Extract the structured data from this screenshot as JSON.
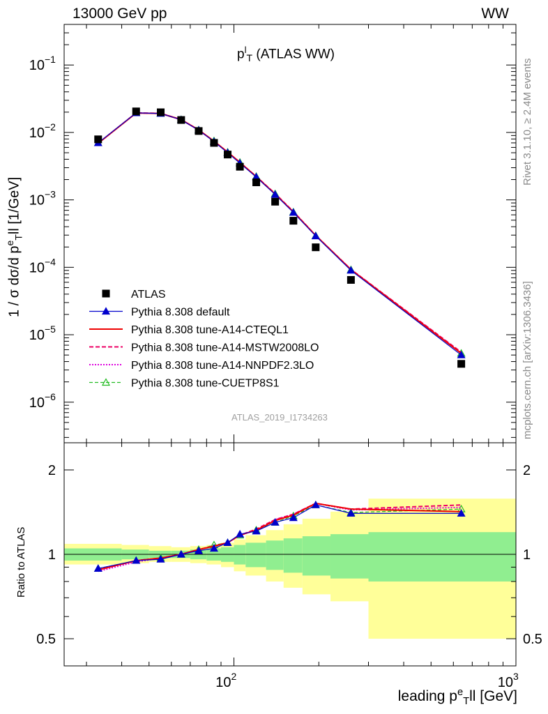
{
  "header": {
    "left": "13000 GeV pp",
    "right": "WW"
  },
  "side": {
    "rivet": "Rivet 3.1.10, ≥ 2.4M events",
    "mcplots": "mcplots.cern.ch [arXiv:1306.3436]"
  },
  "analysis_id": "ATLAS_2019_I1734263",
  "inset_title": {
    "main": "p",
    "sup": "l",
    "sub": "T",
    "rest": " (ATLAS WW)"
  },
  "ylabel_main": {
    "a": "1 / σ  dσ/d p",
    "sup": "e",
    "sub": "T",
    "b": "ll [1/GeV]"
  },
  "ylabel_ratio": "Ratio to ATLAS",
  "xlabel": {
    "a": "leading p",
    "sup": "e",
    "sub": "T",
    "b": "ll [GeV]"
  },
  "colors": {
    "data": "#000000",
    "default": "#0000cc",
    "cteql1": "#ee0000",
    "mstw": "#ee0066",
    "nnpdf": "#dd00dd",
    "cuetp8s1": "#22bb22",
    "band_inner": "#90ee90",
    "band_outer": "#ffff99"
  },
  "chart_data": [
    {
      "type": "scatter",
      "panel": "main",
      "x_scale": "log",
      "y_scale": "log",
      "xlim": [
        25,
        1000
      ],
      "ylim": [
        2.5e-07,
        0.4
      ],
      "y_ticks": [
        {
          "value": 1e-06,
          "label": "10",
          "exp": "−6"
        },
        {
          "value": 1e-05,
          "label": "10",
          "exp": "−5"
        },
        {
          "value": 0.0001,
          "label": "10",
          "exp": "−4"
        },
        {
          "value": 0.001,
          "label": "10",
          "exp": "−3"
        },
        {
          "value": 0.01,
          "label": "10",
          "exp": "−2"
        },
        {
          "value": 0.1,
          "label": "10",
          "exp": "−1"
        }
      ],
      "x": [
        33,
        45,
        55,
        65,
        75,
        85,
        95,
        105,
        120,
        140,
        162.5,
        195,
        260,
        640
      ],
      "legend_position": "bottom-left",
      "series": [
        {
          "name": "ATLAS",
          "key": "data",
          "values": [
            0.0079,
            0.0205,
            0.0199,
            0.0153,
            0.0105,
            0.007,
            0.0047,
            0.0031,
            0.00182,
            0.00094,
            0.00049,
            0.000198,
            6.5e-05,
            3.7e-06
          ]
        },
        {
          "name": "Pythia 8.308 default",
          "key": "default",
          "values": [
            0.007,
            0.0195,
            0.0191,
            0.0154,
            0.0108,
            0.0073,
            0.005,
            0.0035,
            0.00218,
            0.0012,
            0.00065,
            0.000291,
            9e-05,
            5e-06
          ]
        },
        {
          "name": "Pythia 8.308 tune-A14-CTEQL1",
          "key": "cteql1",
          "values": [
            0.0069,
            0.0194,
            0.0191,
            0.0155,
            0.0109,
            0.0074,
            0.0051,
            0.0036,
            0.0022,
            0.00122,
            0.00066,
            0.000296,
            9.2e-05,
            5.3e-06
          ]
        },
        {
          "name": "Pythia 8.308 tune-A14-MSTW2008LO",
          "key": "mstw",
          "values": [
            0.0069,
            0.0195,
            0.0192,
            0.0155,
            0.0109,
            0.0074,
            0.0051,
            0.0036,
            0.00222,
            0.00124,
            0.00067,
            0.000297,
            9.3e-05,
            5.5e-06
          ]
        },
        {
          "name": "Pythia 8.308 tune-A14-NNPDF2.3LO",
          "key": "nnpdf",
          "values": [
            0.0069,
            0.0194,
            0.0191,
            0.0155,
            0.0108,
            0.0074,
            0.0051,
            0.0036,
            0.00221,
            0.00123,
            0.00067,
            0.000296,
            9.3e-05,
            5.4e-06
          ]
        },
        {
          "name": "Pythia 8.308 tune-CUETP8S1",
          "key": "cuetp8s1",
          "values": [
            0.007,
            0.0196,
            0.0192,
            0.0155,
            0.0109,
            0.0075,
            0.0051,
            0.0036,
            0.00222,
            0.00123,
            0.00066,
            0.000294,
            9.2e-05,
            5.3e-06
          ]
        }
      ]
    },
    {
      "type": "line",
      "panel": "ratio",
      "x_scale": "log",
      "y_scale": "log",
      "xlim": [
        25,
        1000
      ],
      "ylim": [
        0.4,
        2.5
      ],
      "y_ticks": [
        {
          "value": 0.5,
          "label": "0.5"
        },
        {
          "value": 1,
          "label": "1"
        },
        {
          "value": 2,
          "label": "2"
        }
      ],
      "x_ticks": [
        {
          "value": 100,
          "label": "10",
          "exp": "2"
        },
        {
          "value": 1000,
          "label": "10",
          "exp": "3"
        }
      ],
      "x": [
        33,
        45,
        55,
        65,
        75,
        85,
        95,
        105,
        120,
        140,
        162.5,
        195,
        260,
        640
      ],
      "bins": [
        [
          25,
          40
        ],
        [
          40,
          50
        ],
        [
          50,
          60
        ],
        [
          60,
          70
        ],
        [
          70,
          80
        ],
        [
          80,
          90
        ],
        [
          90,
          100
        ],
        [
          100,
          110
        ],
        [
          110,
          130
        ],
        [
          130,
          150
        ],
        [
          150,
          175
        ],
        [
          175,
          220
        ],
        [
          220,
          300
        ],
        [
          300,
          1000
        ]
      ],
      "band_inner": [
        [
          0.95,
          1.05
        ],
        [
          0.96,
          1.04
        ],
        [
          0.97,
          1.03
        ],
        [
          0.97,
          1.03
        ],
        [
          0.96,
          1.04
        ],
        [
          0.95,
          1.05
        ],
        [
          0.94,
          1.06
        ],
        [
          0.92,
          1.08
        ],
        [
          0.9,
          1.1
        ],
        [
          0.88,
          1.12
        ],
        [
          0.86,
          1.14
        ],
        [
          0.84,
          1.16
        ],
        [
          0.82,
          1.18
        ],
        [
          0.8,
          1.2
        ]
      ],
      "band_outer": [
        [
          0.92,
          1.09
        ],
        [
          0.93,
          1.08
        ],
        [
          0.94,
          1.07
        ],
        [
          0.94,
          1.06
        ],
        [
          0.93,
          1.07
        ],
        [
          0.92,
          1.08
        ],
        [
          0.9,
          1.1
        ],
        [
          0.87,
          1.13
        ],
        [
          0.84,
          1.17
        ],
        [
          0.8,
          1.22
        ],
        [
          0.76,
          1.28
        ],
        [
          0.72,
          1.34
        ],
        [
          0.68,
          1.42
        ],
        [
          0.5,
          1.58
        ]
      ],
      "series": [
        {
          "name": "Pythia 8.308 default",
          "key": "default",
          "values": [
            0.89,
            0.95,
            0.96,
            1.0,
            1.03,
            1.05,
            1.1,
            1.18,
            1.21,
            1.3,
            1.35,
            1.5,
            1.4,
            1.4
          ]
        },
        {
          "name": "Pythia 8.308 tune-A14-CTEQL1",
          "key": "cteql1",
          "values": [
            0.88,
            0.95,
            0.97,
            1.0,
            1.04,
            1.07,
            1.1,
            1.17,
            1.22,
            1.32,
            1.38,
            1.52,
            1.45,
            1.42
          ]
        },
        {
          "name": "Pythia 8.308 tune-A14-MSTW2008LO",
          "key": "mstw",
          "values": [
            0.88,
            0.95,
            0.97,
            1.0,
            1.04,
            1.07,
            1.1,
            1.17,
            1.23,
            1.33,
            1.39,
            1.52,
            1.45,
            1.5
          ]
        },
        {
          "name": "Pythia 8.308 tune-A14-NNPDF2.3LO",
          "key": "nnpdf",
          "values": [
            0.87,
            0.94,
            0.97,
            1.0,
            1.04,
            1.07,
            1.1,
            1.17,
            1.22,
            1.33,
            1.39,
            1.52,
            1.44,
            1.47
          ]
        },
        {
          "name": "Pythia 8.308 tune-CUETP8S1",
          "key": "cuetp8s1",
          "values": [
            0.89,
            0.95,
            0.97,
            1.0,
            1.04,
            1.08,
            1.1,
            1.17,
            1.22,
            1.3,
            1.37,
            1.5,
            1.41,
            1.45
          ]
        }
      ]
    }
  ]
}
